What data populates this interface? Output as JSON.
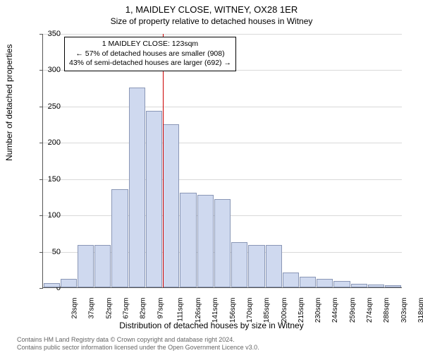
{
  "titles": {
    "main": "1, MAIDLEY CLOSE, WITNEY, OX28 1ER",
    "sub": "Size of property relative to detached houses in Witney"
  },
  "chart": {
    "type": "histogram",
    "ylabel": "Number of detached properties",
    "xlabel": "Distribution of detached houses by size in Witney",
    "ylim": [
      0,
      350
    ],
    "ytick_step": 50,
    "x_categories": [
      "23sqm",
      "37sqm",
      "52sqm",
      "67sqm",
      "82sqm",
      "97sqm",
      "111sqm",
      "126sqm",
      "141sqm",
      "156sqm",
      "170sqm",
      "185sqm",
      "200sqm",
      "215sqm",
      "230sqm",
      "244sqm",
      "259sqm",
      "274sqm",
      "288sqm",
      "303sqm",
      "318sqm"
    ],
    "values": [
      6,
      12,
      58,
      58,
      135,
      275,
      243,
      225,
      130,
      127,
      122,
      62,
      58,
      58,
      20,
      15,
      12,
      9,
      5,
      4,
      3
    ],
    "bar_fill": "#cfd9ef",
    "bar_stroke": "#8a97b6",
    "grid_color": "#d9d9d9",
    "background_color": "#ffffff",
    "axis_color": "#555555",
    "reference_line": {
      "category_index": 7,
      "color": "#cc0000"
    }
  },
  "info_box": {
    "line1": "1 MAIDLEY CLOSE: 123sqm",
    "line2": "← 57% of detached houses are smaller (908)",
    "line3": "43% of semi-detached houses are larger (692) →",
    "border_color": "#000000",
    "background": "#ffffff",
    "font_size_pt": 8
  },
  "footer": {
    "line1": "Contains HM Land Registry data © Crown copyright and database right 2024.",
    "line2": "Contains public sector information licensed under the Open Government Licence v3.0."
  }
}
